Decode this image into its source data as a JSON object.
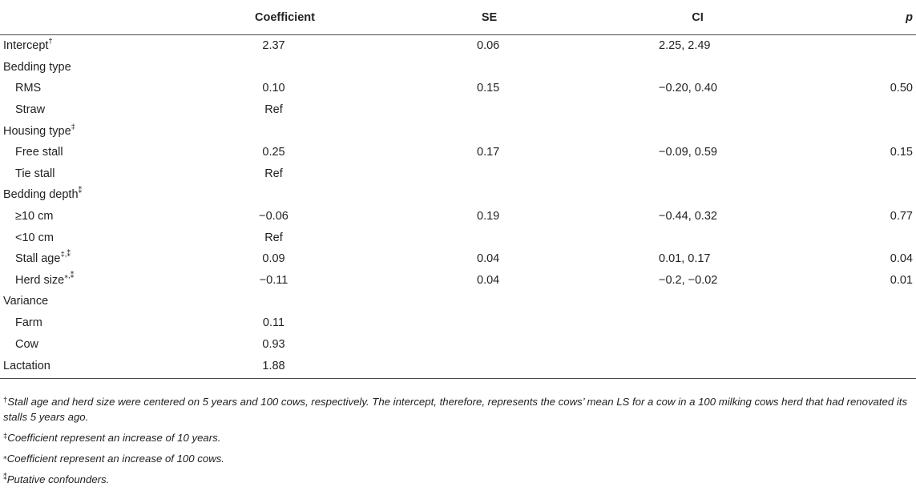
{
  "table": {
    "headers": {
      "label": "",
      "coefficient": "Coefficient",
      "se": "SE",
      "ci": "CI",
      "p": "p"
    },
    "rows": [
      {
        "label": "Intercept",
        "mark": "†",
        "coef": "2.37",
        "se": "0.06",
        "ci": "2.25, 2.49",
        "p": ""
      },
      {
        "label": "Bedding type",
        "mark": "",
        "coef": "",
        "se": "",
        "ci": "",
        "p": ""
      },
      {
        "label": "RMS",
        "mark": "",
        "coef": "0.10",
        "se": "0.15",
        "ci": "−0.20, 0.40",
        "p": "0.50"
      },
      {
        "label": "Straw",
        "mark": "",
        "coef": "Ref",
        "se": "",
        "ci": "",
        "p": ""
      },
      {
        "label": "Housing type",
        "mark": "‡",
        "coef": "",
        "se": "",
        "ci": "",
        "p": ""
      },
      {
        "label": "Free stall",
        "mark": "",
        "coef": "0.25",
        "se": "0.17",
        "ci": "−0.09, 0.59",
        "p": "0.15"
      },
      {
        "label": "Tie stall",
        "mark": "",
        "coef": "Ref",
        "se": "",
        "ci": "",
        "p": ""
      },
      {
        "label": "Bedding depth",
        "mark": "⁑",
        "coef": "",
        "se": "",
        "ci": "",
        "p": ""
      },
      {
        "label": "≥10 cm",
        "mark": "",
        "coef": "−0.06",
        "se": "0.19",
        "ci": "−0.44, 0.32",
        "p": "0.77"
      },
      {
        "label": "<10 cm",
        "mark": "",
        "coef": "Ref",
        "se": "",
        "ci": "",
        "p": ""
      },
      {
        "label": "Stall age",
        "mark": "‡,⁑",
        "coef": "0.09",
        "se": "0.04",
        "ci": "0.01, 0.17",
        "p": "0.04"
      },
      {
        "label": "Herd size",
        "mark": "⁎,⁑",
        "coef": "−0.11",
        "se": "0.04",
        "ci": "−0.2, −0.02",
        "p": "0.01"
      },
      {
        "label": "Variance",
        "mark": "",
        "coef": "",
        "se": "",
        "ci": "",
        "p": ""
      },
      {
        "label": "Farm",
        "mark": "",
        "coef": "0.11",
        "se": "",
        "ci": "",
        "p": ""
      },
      {
        "label": "Cow",
        "mark": "",
        "coef": "0.93",
        "se": "",
        "ci": "",
        "p": ""
      },
      {
        "label": "Lactation",
        "mark": "",
        "coef": "1.88",
        "se": "",
        "ci": "",
        "p": ""
      }
    ]
  },
  "footnotes": [
    {
      "mark": "†",
      "text": "Stall age and herd size were centered on 5 years and 100 cows, respectively. The intercept, therefore, represents the cows’ mean LS for a cow in a 100 milking cows herd that had renovated its stalls 5 years ago."
    },
    {
      "mark": "‡",
      "text": "Coefficient represent an increase of 10 years."
    },
    {
      "mark": "⁎",
      "text": "Coefficient represent an increase of 100 cows."
    },
    {
      "mark": "⁑",
      "text": "Putative confounders."
    }
  ]
}
